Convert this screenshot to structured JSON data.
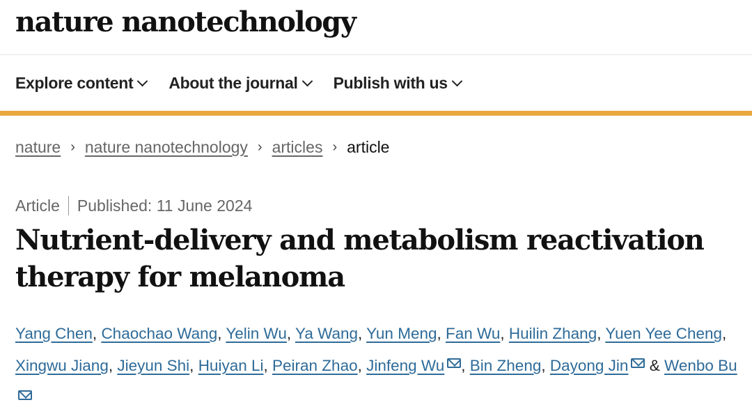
{
  "header": {
    "logo": "nature nanotechnology"
  },
  "nav": {
    "items": [
      {
        "label": "Explore content"
      },
      {
        "label": "About the journal"
      },
      {
        "label": "Publish with us"
      }
    ]
  },
  "colors": {
    "accent_bar": "#e8a83e",
    "link": "#2e6b99"
  },
  "breadcrumb": {
    "items": [
      "nature",
      "nature nanotechnology",
      "articles"
    ],
    "current": "article",
    "separator": "›"
  },
  "article": {
    "type": "Article",
    "published": "Published: 11 June 2024",
    "title": "Nutrient-delivery and metabolism reactivation therapy for melanoma",
    "authors": [
      {
        "name": "Yang Chen",
        "email": false
      },
      {
        "name": "Chaochao Wang",
        "email": false
      },
      {
        "name": "Yelin Wu",
        "email": false
      },
      {
        "name": "Ya Wang",
        "email": false
      },
      {
        "name": "Yun Meng",
        "email": false
      },
      {
        "name": "Fan Wu",
        "email": false
      },
      {
        "name": "Huilin Zhang",
        "email": false
      },
      {
        "name": "Yuen Yee Cheng",
        "email": false
      },
      {
        "name": "Xingwu Jiang",
        "email": false
      },
      {
        "name": "Jieyun Shi",
        "email": false
      },
      {
        "name": "Huiyan Li",
        "email": false
      },
      {
        "name": "Peiran Zhao",
        "email": false
      },
      {
        "name": "Jinfeng Wu",
        "email": true
      },
      {
        "name": "Bin Zheng",
        "email": false
      },
      {
        "name": "Dayong Jin",
        "email": true
      },
      {
        "name": "Wenbo Bu",
        "email": true
      }
    ],
    "last_joiner": "&"
  }
}
